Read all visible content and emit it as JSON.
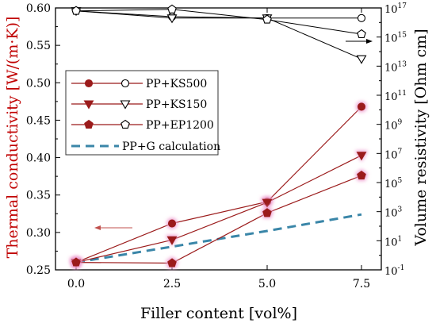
{
  "chart_data": {
    "type": "line",
    "x": [
      0.0,
      2.5,
      5.0,
      7.5
    ],
    "x_tick_labels": [
      "0.0",
      "2.5",
      "5.0",
      "7.5"
    ],
    "xlabel": "Filler content [vol%]",
    "ylabel_left": "Thermal conductivity [W/(m·K)]",
    "ylabel_right": "Volume resistivity [Ohm cm]",
    "ylim_left": [
      0.25,
      0.6
    ],
    "ylim_right_log10": [
      -1,
      17
    ],
    "y_left_ticks": [
      0.25,
      0.3,
      0.35,
      0.4,
      0.45,
      0.5,
      0.55,
      0.6
    ],
    "y_left_tick_labels": [
      "0.25",
      "0.30",
      "0.35",
      "0.40",
      "0.45",
      "0.50",
      "0.55",
      "0.60"
    ],
    "y_right_ticks_exp": [
      -1,
      1,
      3,
      5,
      7,
      9,
      11,
      13,
      15,
      17
    ],
    "y_right_tick_base": "10",
    "y_right_tick_exponents": [
      "-1",
      "1",
      "3",
      "5",
      "7",
      "9",
      "11",
      "13",
      "15",
      "17"
    ],
    "colors": {
      "left_axis": "#c00000",
      "series": "#9b1b1b",
      "calc": "#3a86a8",
      "arrow": "#c0504d"
    },
    "legend_position": "left-middle",
    "thermal_series": [
      {
        "name": "PP+KS500",
        "marker": "circle",
        "values": [
          0.26,
          0.312,
          0.341,
          0.468
        ]
      },
      {
        "name": "PP+KS150",
        "marker": "triangle-down",
        "values": [
          0.26,
          0.29,
          0.34,
          0.403
        ]
      },
      {
        "name": "PP+EP1200",
        "marker": "pentagon",
        "values": [
          0.26,
          0.259,
          0.326,
          0.376
        ]
      }
    ],
    "calc_series": {
      "name": "PP+G calculation",
      "values": [
        0.26,
        0.281,
        0.302,
        0.324
      ]
    },
    "resistivity_series_log10": [
      {
        "name": "PP+KS500",
        "marker": "circle",
        "values": [
          16.8,
          16.4,
          16.3,
          16.3
        ]
      },
      {
        "name": "PP+KS150",
        "marker": "triangle-down",
        "values": [
          16.8,
          16.3,
          16.3,
          13.5
        ]
      },
      {
        "name": "PP+EP1200",
        "marker": "pentagon",
        "values": [
          16.8,
          16.9,
          16.2,
          15.2
        ]
      }
    ]
  }
}
